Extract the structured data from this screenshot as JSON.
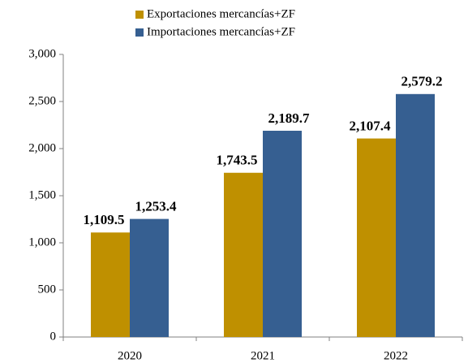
{
  "chart_data": {
    "type": "bar",
    "categories": [
      "2020",
      "2021",
      "2022"
    ],
    "series": [
      {
        "name": "Exportaciones mercancías+ZF",
        "color": "#bf9000",
        "values": [
          1109.5,
          1743.5,
          2107.4
        ],
        "value_labels": [
          "1,109.5",
          "1,743.5",
          "2,107.4"
        ]
      },
      {
        "name": "Importaciones mercancías+ZF",
        "color": "#365f91",
        "values": [
          1253.4,
          2189.7,
          2579.2
        ],
        "value_labels": [
          "1,253.4",
          "2,189.7",
          "2,579.2"
        ]
      }
    ],
    "ylim": [
      0,
      3000
    ],
    "yticks": [
      0,
      500,
      {
        "value": 1000,
        "label": "1,000"
      },
      {
        "value": 1500,
        "label": "1,500"
      },
      {
        "value": 2000,
        "label": "2,000"
      },
      {
        "value": 2500,
        "label": "2,500"
      },
      {
        "value": 3000,
        "label": "3,000"
      }
    ],
    "legend": "top"
  }
}
